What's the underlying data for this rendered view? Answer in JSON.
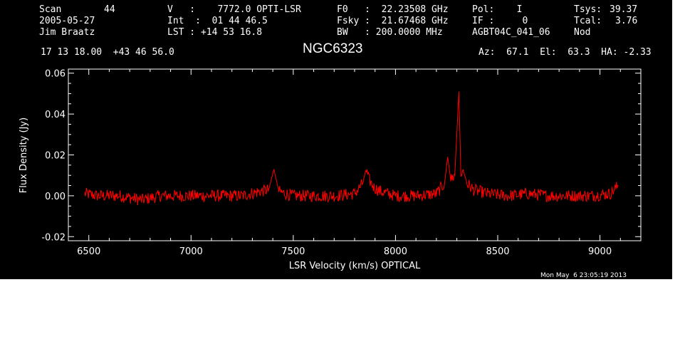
{
  "header": {
    "scan_label": "Scan",
    "scan_value": "44",
    "date": "2005-05-27",
    "observer": "Jim Braatz",
    "v": "V   :    7772.0 OPTI-LSR",
    "int": "Int  :  01 44 46.5",
    "lst": "LST : +14 53 16.8",
    "f0": "F0   :  22.23508 GHz",
    "fsky": "Fsky :  21.67468 GHz",
    "bw": "BW   : 200.0000 MHz",
    "pol": "Pol:    I",
    "if": "IF :     0",
    "proj": "AGBT04C_041_06",
    "tsys_label": "Tsys:",
    "tsys_value": "39.37",
    "tcal_label": "Tcal:",
    "tcal_value": "3.76",
    "mode": "Nod",
    "coords": "17 13 18.00  +43 46 56.0",
    "source": "NGC6323",
    "azelha": "Az:  67.1  El:  63.3  HA: -2.33",
    "timestamp": "Mon May  6 23:05:19 2013"
  },
  "colors": {
    "background": "#000000",
    "axes": "#ffffff",
    "trace": "#ff0000"
  },
  "chart_data": {
    "type": "line",
    "xlabel": "LSR Velocity (km/s) OPTICAL",
    "ylabel": "Flux Density (Jy)",
    "xlim": [
      6400,
      9200
    ],
    "ylim": [
      -0.022,
      0.062
    ],
    "x_ticks": [
      "6500",
      "7000",
      "7500",
      "8000",
      "8500",
      "9000"
    ],
    "y_ticks": [
      "-0.02",
      "0.00",
      "0.02",
      "0.04",
      "0.06"
    ],
    "grid": false,
    "series": [
      {
        "x": [
          6480,
          6550,
          6650,
          6760,
          6850,
          6950,
          7050,
          7150,
          7250,
          7330,
          7380,
          7405,
          7430,
          7500,
          7600,
          7700,
          7800,
          7840,
          7855,
          7870,
          7895,
          7930,
          8000,
          8100,
          8200,
          8240,
          8255,
          8270,
          8290,
          8310,
          8320,
          8330,
          8350,
          8380,
          8450,
          8550,
          8650,
          8750,
          8850,
          8950,
          9050,
          9090
        ],
        "y": [
          0.001,
          0.0,
          0.0,
          -0.002,
          0.0,
          0.0,
          0.0,
          0.0,
          0.0,
          0.002,
          0.003,
          0.013,
          0.002,
          0.0,
          0.0,
          0.0,
          0.001,
          0.006,
          0.013,
          0.008,
          0.004,
          0.002,
          0.0,
          0.0,
          0.001,
          0.006,
          0.019,
          0.008,
          0.01,
          0.051,
          0.009,
          0.013,
          0.006,
          0.003,
          0.001,
          0.0,
          0.001,
          0.0,
          0.0,
          0.0,
          0.001,
          0.005
        ]
      }
    ]
  }
}
